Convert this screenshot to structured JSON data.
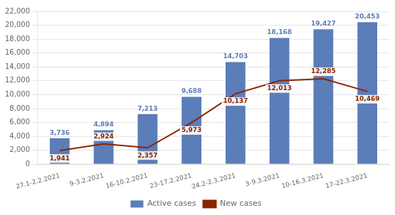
{
  "chart_data": {
    "type": "bar",
    "categories": [
      "27.1-2.2.2021",
      "9-3.2.2021",
      "16-10.2.2021",
      "23-17.2.2021",
      "24.2-2.3.2021",
      "3-9.3.2021",
      "10-16.3.2021",
      "17-22.3.2021"
    ],
    "series": [
      {
        "name": "Active cases",
        "type": "bar",
        "color": "#5B7DB8",
        "values": [
          3736,
          4894,
          7213,
          9688,
          14703,
          18168,
          19427,
          20453
        ],
        "value_labels": [
          "3,736",
          "4,894",
          "7,213",
          "9,688",
          "14,703",
          "18,168",
          "19,427",
          "20,453"
        ]
      },
      {
        "name": "New cases",
        "type": "line",
        "color": "#8B2500",
        "values": [
          1941,
          2924,
          2357,
          5973,
          10137,
          12013,
          12285,
          10469
        ],
        "value_labels": [
          "1,941",
          "2,924",
          "2,357",
          "5,973",
          "10,137",
          "12,013",
          "12,285",
          "10,469"
        ]
      }
    ],
    "ylim": [
      0,
      22000
    ],
    "yticks": [
      0,
      {
        "value": 2000,
        "label": "2,000"
      },
      {
        "value": 4000,
        "label": "4,000"
      },
      {
        "value": 6000,
        "label": "6,000"
      },
      {
        "value": 8000,
        "label": "8,000"
      },
      {
        "value": 10000,
        "label": "10,000"
      },
      {
        "value": 12000,
        "label": "12,000"
      },
      {
        "value": 14000,
        "label": "14,000"
      },
      {
        "value": 16000,
        "label": "16,000"
      },
      {
        "value": 18000,
        "label": "18,000"
      },
      {
        "value": 20000,
        "label": "20,000"
      },
      {
        "value": 22000,
        "label": "22,000"
      }
    ],
    "grid": true,
    "legend": "bottom",
    "data_labels": true
  }
}
